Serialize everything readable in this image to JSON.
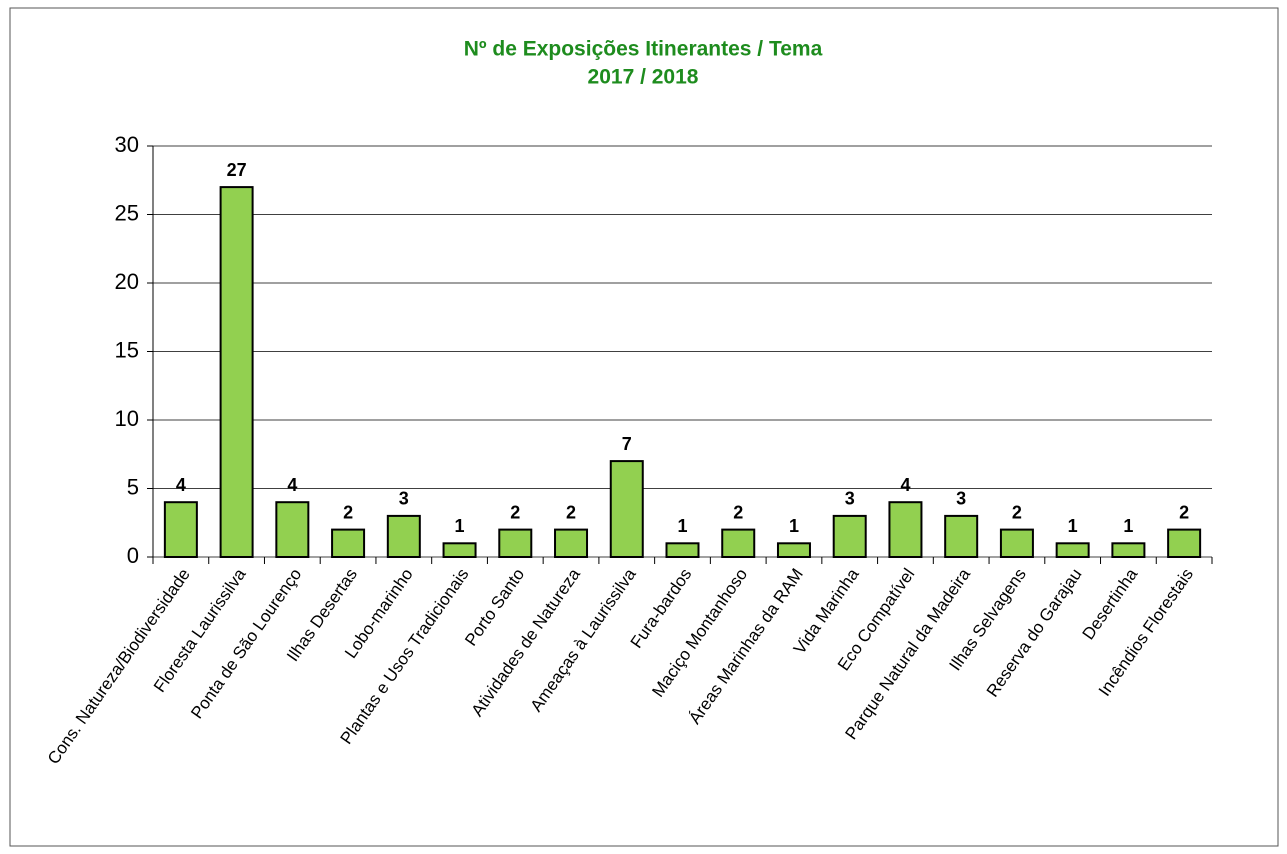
{
  "chart_data": {
    "type": "bar",
    "title": "Nº de Exposições Itinerantes / Tema",
    "subtitle": "2017 / 2018",
    "categories": [
      "Cons. Natureza/Biodiversidade",
      "Floresta Laurissilva",
      "Ponta de São Lourenço",
      "Ilhas Desertas",
      "Lobo-marinho",
      "Plantas e Usos Tradicionais",
      "Porto Santo",
      "Atividades de Natureza",
      "Ameaças à Laurissilva",
      "Fura-bardos",
      "Maciço Montanhoso",
      "Áreas Marinhas da RAM",
      "Vida Marinha",
      "Eco Compatível",
      "Parque Natural da Madeira",
      "Ilhas Selvagens",
      "Reserva do Garajau",
      "Desertinha",
      "Incêndios Florestais"
    ],
    "values": [
      4,
      27,
      4,
      2,
      3,
      1,
      2,
      2,
      7,
      1,
      2,
      1,
      3,
      4,
      3,
      2,
      1,
      1,
      2
    ],
    "color": "#92d050",
    "ylim": [
      0,
      30
    ],
    "yticks": [
      0,
      5,
      10,
      15,
      20,
      25,
      30
    ],
    "grid": true
  }
}
